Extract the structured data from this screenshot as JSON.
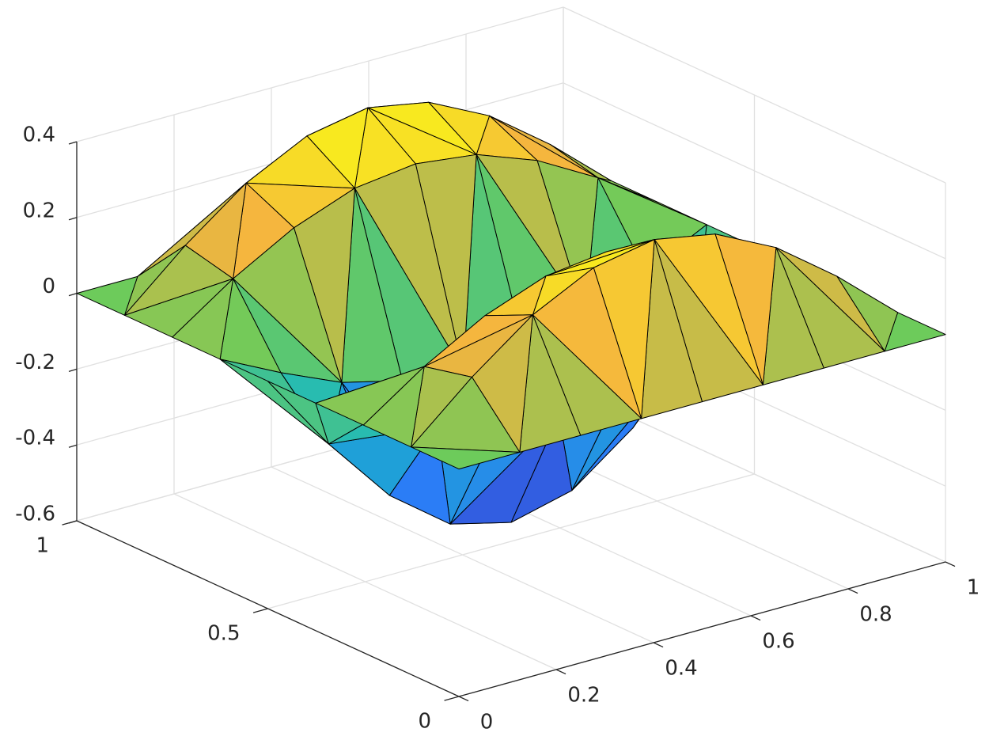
{
  "chart_data": {
    "type": "surface",
    "x": [
      0,
      0.125,
      0.25,
      0.375,
      0.5,
      0.625,
      0.75,
      0.875,
      1
    ],
    "y": [
      0,
      0.125,
      0.25,
      0.375,
      0.5,
      0.625,
      0.75,
      0.875,
      1
    ],
    "z": [
      [
        0,
        0,
        0,
        0,
        0,
        0,
        0,
        0,
        0
      ],
      [
        0,
        0.14,
        0.26,
        0.34,
        0.37,
        0.34,
        0.26,
        0.14,
        0
      ],
      [
        0,
        0.11,
        0.2,
        0.26,
        0.28,
        0.26,
        0.2,
        0.11,
        0
      ],
      [
        0,
        -0.08,
        -0.15,
        -0.19,
        -0.21,
        -0.19,
        -0.15,
        -0.08,
        0
      ],
      [
        0,
        -0.21,
        -0.39,
        -0.51,
        -0.55,
        -0.51,
        -0.39,
        -0.21,
        0
      ],
      [
        0,
        -0.08,
        -0.15,
        -0.19,
        -0.21,
        -0.19,
        -0.15,
        -0.08,
        0
      ],
      [
        0,
        0.11,
        0.2,
        0.26,
        0.28,
        0.26,
        0.2,
        0.11,
        0
      ],
      [
        0,
        0.14,
        0.26,
        0.34,
        0.37,
        0.34,
        0.26,
        0.14,
        0
      ],
      [
        0,
        0,
        0,
        0,
        0,
        0,
        0,
        0,
        0
      ]
    ],
    "xlim": [
      0,
      1
    ],
    "ylim": [
      0,
      1
    ],
    "zlim": [
      -0.6,
      0.4
    ],
    "xticks": [
      0,
      0.2,
      0.4,
      0.6,
      0.8,
      1
    ],
    "yticks": [
      0,
      0.5,
      1
    ],
    "zticks": [
      -0.6,
      -0.4,
      -0.2,
      0,
      0.2,
      0.4
    ],
    "grid": true,
    "colormap": [
      "#3e26a8",
      "#2d77fb",
      "#17b8c4",
      "#6ecb5a",
      "#f5b43f",
      "#f9fb14"
    ],
    "edge_color": "#000000"
  }
}
